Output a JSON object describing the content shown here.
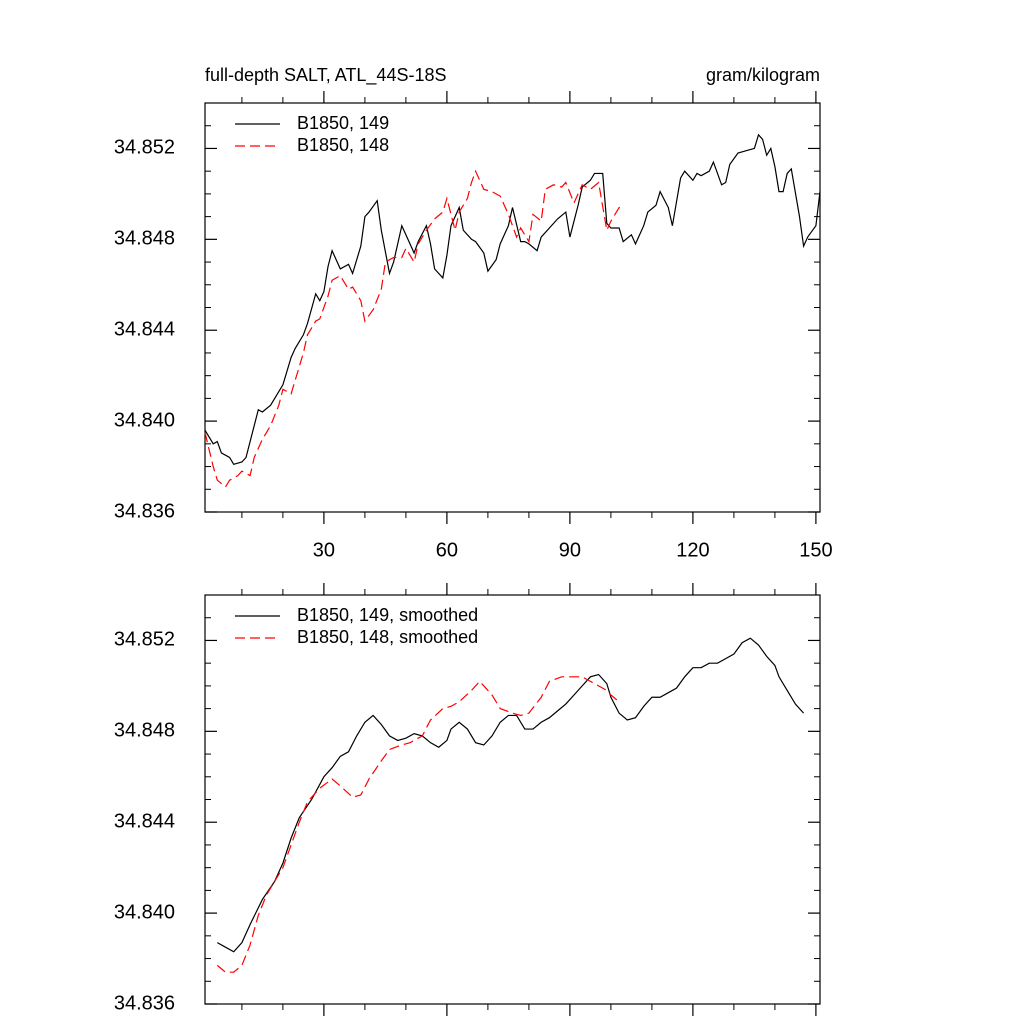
{
  "chart_data": [
    {
      "type": "line",
      "title": "full-depth SALT, ATL_44S-18S",
      "units": "gram/kilogram",
      "xlim": [
        1,
        151
      ],
      "xticks": [
        30,
        60,
        90,
        120,
        150
      ],
      "minor_xticks": [
        10,
        20,
        40,
        50,
        70,
        80,
        100,
        110,
        130,
        140
      ],
      "ylim": [
        34.836,
        34.854
      ],
      "yticks": [
        34.836,
        {
          "value": 34.84,
          "label": "34.840"
        },
        34.844,
        34.848,
        34.852
      ],
      "minor_yticks": [
        34.837,
        34.838,
        34.839,
        34.841,
        34.842,
        34.843,
        34.845,
        34.846,
        34.847,
        34.849,
        34.85,
        34.851,
        34.853
      ],
      "xtick_labels": true,
      "legend": "top-left",
      "series": [
        {
          "name": "B1850, 149",
          "color": "#000000",
          "dash": "solid",
          "x": [
            1,
            3,
            4,
            5,
            7,
            8,
            10,
            11,
            14,
            15,
            17,
            19,
            20,
            22,
            23,
            25,
            26,
            28,
            29,
            30,
            31,
            32,
            34,
            36,
            37,
            39,
            40,
            41,
            43,
            44,
            46,
            47,
            49,
            50,
            52,
            53,
            55,
            56,
            57,
            59,
            60,
            61,
            63,
            64,
            66,
            67,
            69,
            70,
            72,
            73,
            75,
            76,
            78,
            79,
            80,
            82,
            83,
            85,
            87,
            89,
            90,
            92,
            93,
            95,
            96,
            98,
            99,
            100,
            102,
            103,
            105,
            106,
            108,
            109,
            111,
            112,
            114,
            115,
            117,
            118,
            120,
            121,
            122,
            124,
            125,
            127,
            128,
            129,
            131,
            133,
            135,
            136,
            137,
            138,
            139,
            140,
            141,
            142,
            143,
            144,
            146,
            147,
            148,
            150,
            151
          ],
          "values": [
            34.8396,
            34.839,
            34.8391,
            34.8386,
            34.8384,
            34.8381,
            34.8382,
            34.8384,
            34.8405,
            34.8404,
            34.8407,
            34.8413,
            34.8416,
            34.8428,
            34.8432,
            34.8438,
            34.8443,
            34.8456,
            34.8453,
            34.8457,
            34.8468,
            34.8475,
            34.8467,
            34.8469,
            34.8465,
            34.8477,
            34.849,
            34.8492,
            34.8497,
            34.8484,
            34.8465,
            34.847,
            34.8486,
            34.8482,
            34.8474,
            34.8479,
            34.8486,
            34.8478,
            34.8467,
            34.8463,
            34.8473,
            34.8486,
            34.8494,
            34.8484,
            34.848,
            34.8479,
            34.8474,
            34.8466,
            34.8471,
            34.8478,
            34.8486,
            34.8494,
            34.8479,
            34.8479,
            34.8478,
            34.8475,
            34.8481,
            34.8485,
            34.8489,
            34.8492,
            34.8481,
            34.8495,
            34.8503,
            34.8506,
            34.8509,
            34.8509,
            34.8487,
            34.8485,
            34.8485,
            34.8479,
            34.8482,
            34.8478,
            34.8486,
            34.8492,
            34.8495,
            34.8501,
            34.8494,
            34.8486,
            34.8507,
            34.851,
            34.8506,
            34.8509,
            34.8508,
            34.851,
            34.8514,
            34.8504,
            34.8505,
            34.8513,
            34.8518,
            34.8519,
            34.852,
            34.8526,
            34.8524,
            34.8517,
            34.852,
            34.8512,
            34.8501,
            34.8501,
            34.8509,
            34.8511,
            34.849,
            34.8477,
            34.8481,
            34.8486,
            34.8501
          ]
        },
        {
          "name": "B1850, 148",
          "color": "#ff0000",
          "dash": "dashed",
          "x": [
            1,
            3,
            4,
            6,
            7,
            9,
            10,
            12,
            13,
            15,
            17,
            19,
            20,
            22,
            23,
            25,
            26,
            28,
            29,
            31,
            32,
            34,
            36,
            37,
            39,
            40,
            42,
            44,
            45,
            47,
            49,
            50,
            52,
            53,
            55,
            57,
            59,
            60,
            62,
            63,
            65,
            66,
            67,
            69,
            71,
            73,
            75,
            77,
            78,
            80,
            81,
            83,
            84,
            86,
            88,
            89,
            91,
            93,
            95,
            97,
            99,
            100,
            102,
            103
          ],
          "values": [
            34.8395,
            34.838,
            34.8374,
            34.8371,
            34.8374,
            34.8376,
            34.8378,
            34.8376,
            34.8384,
            34.8392,
            34.8398,
            34.8407,
            34.8414,
            34.8412,
            34.8418,
            34.843,
            34.8438,
            34.8444,
            34.8445,
            34.8455,
            34.8462,
            34.8464,
            34.8458,
            34.8459,
            34.8453,
            34.8444,
            34.8449,
            34.8458,
            34.847,
            34.8472,
            34.8472,
            34.8476,
            34.847,
            34.8478,
            34.8484,
            34.8489,
            34.8492,
            34.8498,
            34.8484,
            34.8492,
            34.8498,
            34.8505,
            34.851,
            34.8502,
            34.8501,
            34.8499,
            34.8491,
            34.8481,
            34.8485,
            34.8479,
            34.8491,
            34.8488,
            34.8502,
            34.8504,
            34.8503,
            34.8505,
            34.8496,
            34.8504,
            34.8502,
            34.8505,
            34.8484,
            34.8488,
            34.8494,
            34.8493
          ]
        }
      ]
    },
    {
      "type": "line",
      "xlim": [
        1,
        151
      ],
      "xticks": [
        30,
        60,
        90,
        120,
        150
      ],
      "minor_xticks": [
        10,
        20,
        40,
        50,
        70,
        80,
        100,
        110,
        130,
        140
      ],
      "ylim": [
        34.836,
        34.854
      ],
      "yticks": [
        34.836,
        {
          "value": 34.84,
          "label": "34.840"
        },
        34.844,
        34.848,
        34.852
      ],
      "minor_yticks": [
        34.837,
        34.838,
        34.839,
        34.841,
        34.842,
        34.843,
        34.845,
        34.846,
        34.847,
        34.849,
        34.85,
        34.851,
        34.853
      ],
      "xtick_labels": false,
      "legend": "top-left",
      "series": [
        {
          "name": "B1850, 149, smoothed",
          "color": "#000000",
          "dash": "solid",
          "x": [
            4,
            6,
            8,
            10,
            12,
            15,
            18,
            20,
            22,
            24,
            27,
            30,
            32,
            34,
            36,
            38,
            40,
            42,
            44,
            46,
            48,
            50,
            52,
            54,
            56,
            58,
            60,
            61,
            63,
            65,
            67,
            69,
            71,
            73,
            75,
            77,
            79,
            81,
            83,
            85,
            87,
            89,
            91,
            93,
            95,
            97,
            99,
            100,
            102,
            104,
            106,
            108,
            110,
            112,
            114,
            116,
            118,
            120,
            122,
            124,
            126,
            128,
            130,
            132,
            134,
            136,
            138,
            140,
            141,
            143,
            145,
            147
          ],
          "values": [
            34.8387,
            34.8385,
            34.8383,
            34.8387,
            34.8395,
            34.8406,
            34.8414,
            34.8422,
            34.8433,
            34.8442,
            34.845,
            34.846,
            34.8464,
            34.8469,
            34.8471,
            34.8478,
            34.8484,
            34.8487,
            34.8483,
            34.8478,
            34.8476,
            34.8477,
            34.8479,
            34.8478,
            34.8475,
            34.8473,
            34.8476,
            34.8481,
            34.8484,
            34.8481,
            34.8475,
            34.8474,
            34.8478,
            34.8484,
            34.8487,
            34.8487,
            34.8481,
            34.8481,
            34.8484,
            34.8486,
            34.8489,
            34.8492,
            34.8496,
            34.85,
            34.8504,
            34.8505,
            34.8501,
            34.8495,
            34.8488,
            34.8485,
            34.8486,
            34.8491,
            34.8495,
            34.8495,
            34.8497,
            34.8499,
            34.8504,
            34.8508,
            34.8508,
            34.851,
            34.851,
            34.8512,
            34.8514,
            34.8519,
            34.8521,
            34.8518,
            34.8513,
            34.8509,
            34.8504,
            34.8498,
            34.8492,
            34.8488
          ]
        },
        {
          "name": "B1850, 148, smoothed",
          "color": "#ff0000",
          "dash": "dashed",
          "x": [
            4,
            6,
            8,
            10,
            12,
            14,
            16,
            18,
            20,
            22,
            24,
            26,
            29,
            32,
            34,
            37,
            39,
            41,
            44,
            46,
            49,
            51,
            54,
            56,
            59,
            61,
            63,
            66,
            68,
            71,
            73,
            76,
            78,
            80,
            83,
            85,
            88,
            90,
            93,
            95,
            97,
            99,
            100,
            102
          ],
          "values": [
            34.8377,
            34.8374,
            34.8374,
            34.8377,
            34.8386,
            34.8399,
            34.8408,
            34.8414,
            34.842,
            34.843,
            34.844,
            34.8449,
            34.8455,
            34.8459,
            34.8456,
            34.8451,
            34.8452,
            34.8459,
            34.8467,
            34.8472,
            34.8474,
            34.8475,
            34.8478,
            34.8485,
            34.849,
            34.8491,
            34.8493,
            34.8498,
            34.8502,
            34.8496,
            34.849,
            34.8488,
            34.8487,
            34.8488,
            34.8495,
            34.8502,
            34.8504,
            34.8504,
            34.8504,
            34.8502,
            34.85,
            34.8498,
            34.8496,
            34.8493
          ]
        }
      ]
    }
  ]
}
